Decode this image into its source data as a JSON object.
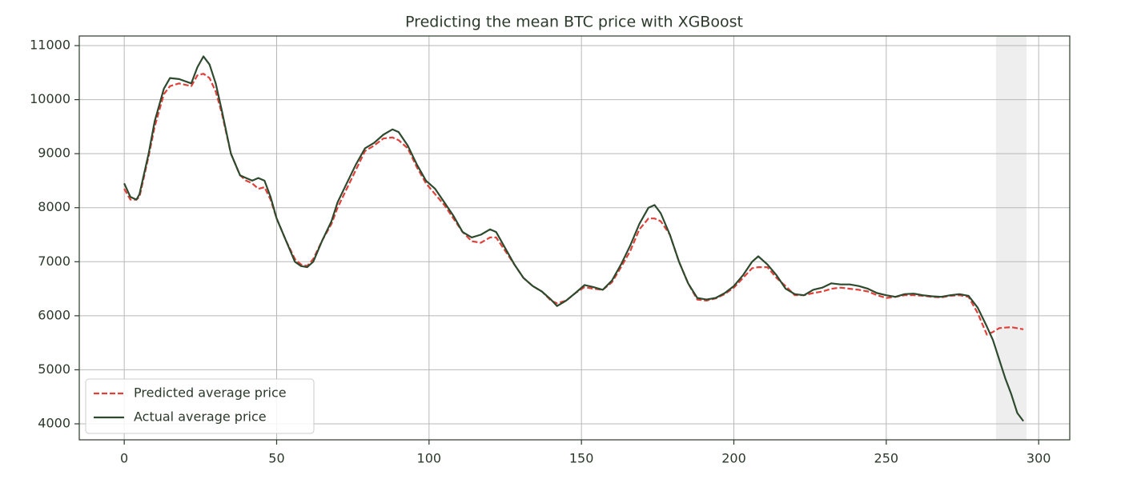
{
  "chart_data": {
    "type": "line",
    "title": "Predicting the mean BTC price with XGBoost",
    "x": [
      0,
      2,
      4,
      5,
      8,
      10,
      13,
      15,
      18,
      22,
      24,
      26,
      28,
      30,
      32,
      35,
      38,
      40,
      42,
      44,
      46,
      48,
      50,
      53,
      56,
      58,
      60,
      62,
      65,
      68,
      70,
      73,
      76,
      79,
      82,
      85,
      88,
      90,
      93,
      96,
      99,
      102,
      105,
      108,
      111,
      114,
      117,
      120,
      122,
      125,
      128,
      131,
      134,
      137,
      140,
      142,
      145,
      148,
      151,
      154,
      157,
      160,
      163,
      166,
      169,
      172,
      174,
      176,
      179,
      182,
      185,
      188,
      191,
      194,
      197,
      200,
      203,
      206,
      208,
      211,
      214,
      217,
      220,
      223,
      226,
      229,
      232,
      235,
      238,
      241,
      244,
      247,
      250,
      253,
      256,
      259,
      262,
      265,
      268,
      271,
      274,
      277,
      280,
      283,
      285,
      287,
      289,
      291,
      293,
      295
    ],
    "series": [
      {
        "name": "Predicted average price",
        "color": "#e0403a",
        "dashed": true,
        "values": [
          8350,
          8150,
          8150,
          8200,
          8950,
          9500,
          10100,
          10250,
          10300,
          10250,
          10450,
          10480,
          10400,
          10150,
          9750,
          9000,
          8600,
          8500,
          8450,
          8350,
          8380,
          8150,
          7800,
          7400,
          7050,
          6950,
          6920,
          7050,
          7400,
          7700,
          8000,
          8350,
          8700,
          9050,
          9150,
          9280,
          9300,
          9250,
          9100,
          8750,
          8450,
          8250,
          8050,
          7800,
          7550,
          7380,
          7350,
          7450,
          7450,
          7200,
          6950,
          6700,
          6550,
          6450,
          6280,
          6230,
          6280,
          6420,
          6530,
          6500,
          6480,
          6620,
          6900,
          7200,
          7600,
          7800,
          7800,
          7750,
          7500,
          7000,
          6600,
          6300,
          6280,
          6320,
          6400,
          6520,
          6700,
          6880,
          6900,
          6900,
          6700,
          6550,
          6380,
          6380,
          6420,
          6450,
          6500,
          6520,
          6500,
          6480,
          6450,
          6380,
          6330,
          6350,
          6380,
          6380,
          6370,
          6350,
          6340,
          6370,
          6380,
          6350,
          6050,
          5650,
          5700,
          5770,
          5780,
          5790,
          5770,
          5750
        ]
      },
      {
        "name": "Actual average price",
        "color": "#2e4a2e",
        "dashed": false,
        "values": [
          8450,
          8200,
          8150,
          8250,
          9000,
          9600,
          10200,
          10400,
          10380,
          10300,
          10600,
          10800,
          10650,
          10300,
          9800,
          9000,
          8600,
          8550,
          8500,
          8550,
          8500,
          8200,
          7800,
          7400,
          7000,
          6920,
          6900,
          7000,
          7400,
          7750,
          8100,
          8450,
          8800,
          9100,
          9200,
          9350,
          9450,
          9400,
          9150,
          8800,
          8500,
          8350,
          8100,
          7850,
          7550,
          7450,
          7500,
          7600,
          7550,
          7250,
          6950,
          6700,
          6550,
          6450,
          6300,
          6180,
          6280,
          6420,
          6570,
          6530,
          6480,
          6650,
          6950,
          7300,
          7700,
          8000,
          8050,
          7900,
          7500,
          7000,
          6600,
          6330,
          6300,
          6330,
          6420,
          6550,
          6750,
          7000,
          7100,
          6950,
          6750,
          6500,
          6400,
          6380,
          6480,
          6520,
          6600,
          6580,
          6580,
          6550,
          6500,
          6420,
          6380,
          6350,
          6400,
          6410,
          6380,
          6360,
          6350,
          6380,
          6400,
          6370,
          6150,
          5800,
          5550,
          5200,
          4850,
          4550,
          4200,
          4050
        ]
      }
    ],
    "xlim": [
      -14.75,
      310.2
    ],
    "ylim": [
      3704,
      11178
    ],
    "xticks": [
      0,
      50,
      100,
      150,
      200,
      250,
      300
    ],
    "yticks": [
      4000,
      5000,
      6000,
      7000,
      8000,
      9000,
      10000,
      11000
    ],
    "grid": true,
    "shaded_span": [
      286,
      296
    ],
    "legend": "lower left"
  }
}
